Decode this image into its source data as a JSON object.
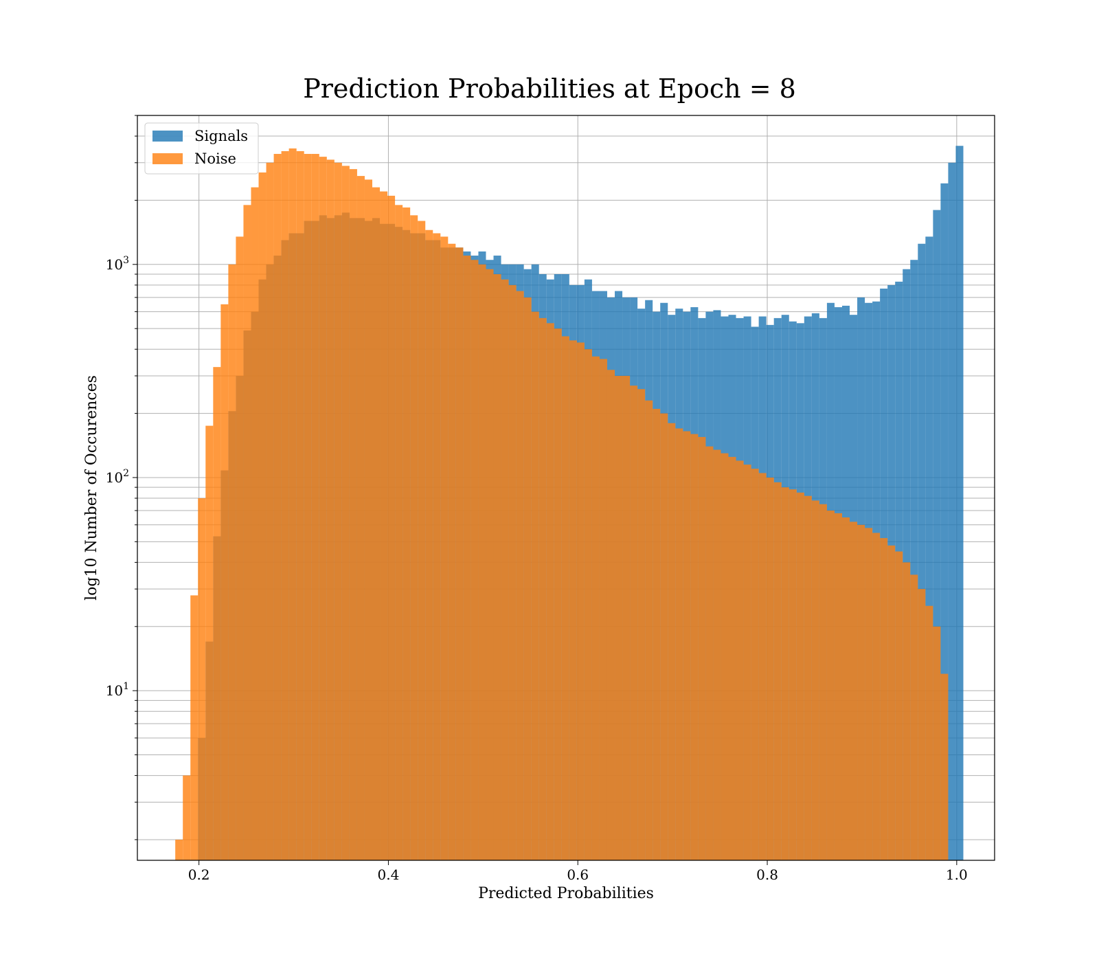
{
  "chart_data": {
    "type": "bar",
    "title": "Prediction Probabilities at Epoch = 8",
    "xlabel": "Predicted Probabilities",
    "ylabel": "log10 Number of Occurences",
    "xlim": [
      0.135,
      1.04
    ],
    "ylim": [
      1.6,
      5000
    ],
    "yscale": "log",
    "grid": true,
    "legend_position": "upper-left",
    "xticks": [
      {
        "value": 0.2,
        "label": "0.2"
      },
      {
        "value": 0.4,
        "label": "0.4"
      },
      {
        "value": 0.6,
        "label": "0.6"
      },
      {
        "value": 0.8,
        "label": "0.8"
      },
      {
        "value": 1.0,
        "label": "1.0"
      }
    ],
    "yticks": [
      {
        "value": 10,
        "base": "10",
        "exp": "1"
      },
      {
        "value": 100,
        "base": "10",
        "exp": "2"
      },
      {
        "value": 1000,
        "base": "10",
        "exp": "3"
      }
    ],
    "bins": {
      "start": 0.175,
      "width": 0.008,
      "count": 103
    },
    "series": [
      {
        "name": "Signals",
        "color": "#1f77b4",
        "opacity": 0.8,
        "values": [
          0,
          0,
          0,
          6,
          17,
          53,
          108,
          205,
          300,
          490,
          600,
          850,
          1000,
          1100,
          1300,
          1400,
          1400,
          1600,
          1600,
          1700,
          1650,
          1700,
          1750,
          1650,
          1650,
          1600,
          1650,
          1550,
          1550,
          1500,
          1450,
          1400,
          1400,
          1300,
          1300,
          1200,
          1200,
          1200,
          1150,
          1100,
          1150,
          1050,
          1100,
          1000,
          1000,
          1000,
          950,
          1000,
          900,
          850,
          900,
          900,
          800,
          800,
          850,
          750,
          750,
          700,
          750,
          700,
          700,
          620,
          680,
          600,
          660,
          580,
          620,
          600,
          630,
          560,
          600,
          610,
          570,
          580,
          560,
          570,
          510,
          570,
          520,
          560,
          580,
          540,
          530,
          570,
          590,
          560,
          660,
          630,
          640,
          580,
          700,
          660,
          670,
          770,
          800,
          830,
          950,
          1050,
          1250,
          1350,
          1800,
          2400,
          3000,
          3600
        ]
      },
      {
        "name": "Noise",
        "color": "#ff7f0e",
        "opacity": 0.8,
        "values": [
          2,
          4,
          28,
          80,
          175,
          330,
          650,
          1000,
          1350,
          1900,
          2300,
          2700,
          3000,
          3300,
          3400,
          3500,
          3400,
          3300,
          3300,
          3200,
          3100,
          3000,
          2900,
          2800,
          2600,
          2500,
          2300,
          2200,
          2100,
          1900,
          1850,
          1700,
          1600,
          1450,
          1400,
          1350,
          1250,
          1200,
          1100,
          1050,
          1000,
          950,
          900,
          850,
          800,
          750,
          700,
          600,
          560,
          530,
          500,
          460,
          440,
          430,
          400,
          370,
          360,
          320,
          300,
          300,
          270,
          260,
          230,
          210,
          200,
          180,
          170,
          165,
          160,
          155,
          140,
          135,
          130,
          125,
          120,
          115,
          110,
          105,
          100,
          95,
          90,
          88,
          85,
          82,
          78,
          75,
          70,
          68,
          65,
          62,
          60,
          58,
          55,
          52,
          48,
          45,
          40,
          35,
          30,
          25,
          20,
          12,
          0
        ]
      }
    ]
  }
}
